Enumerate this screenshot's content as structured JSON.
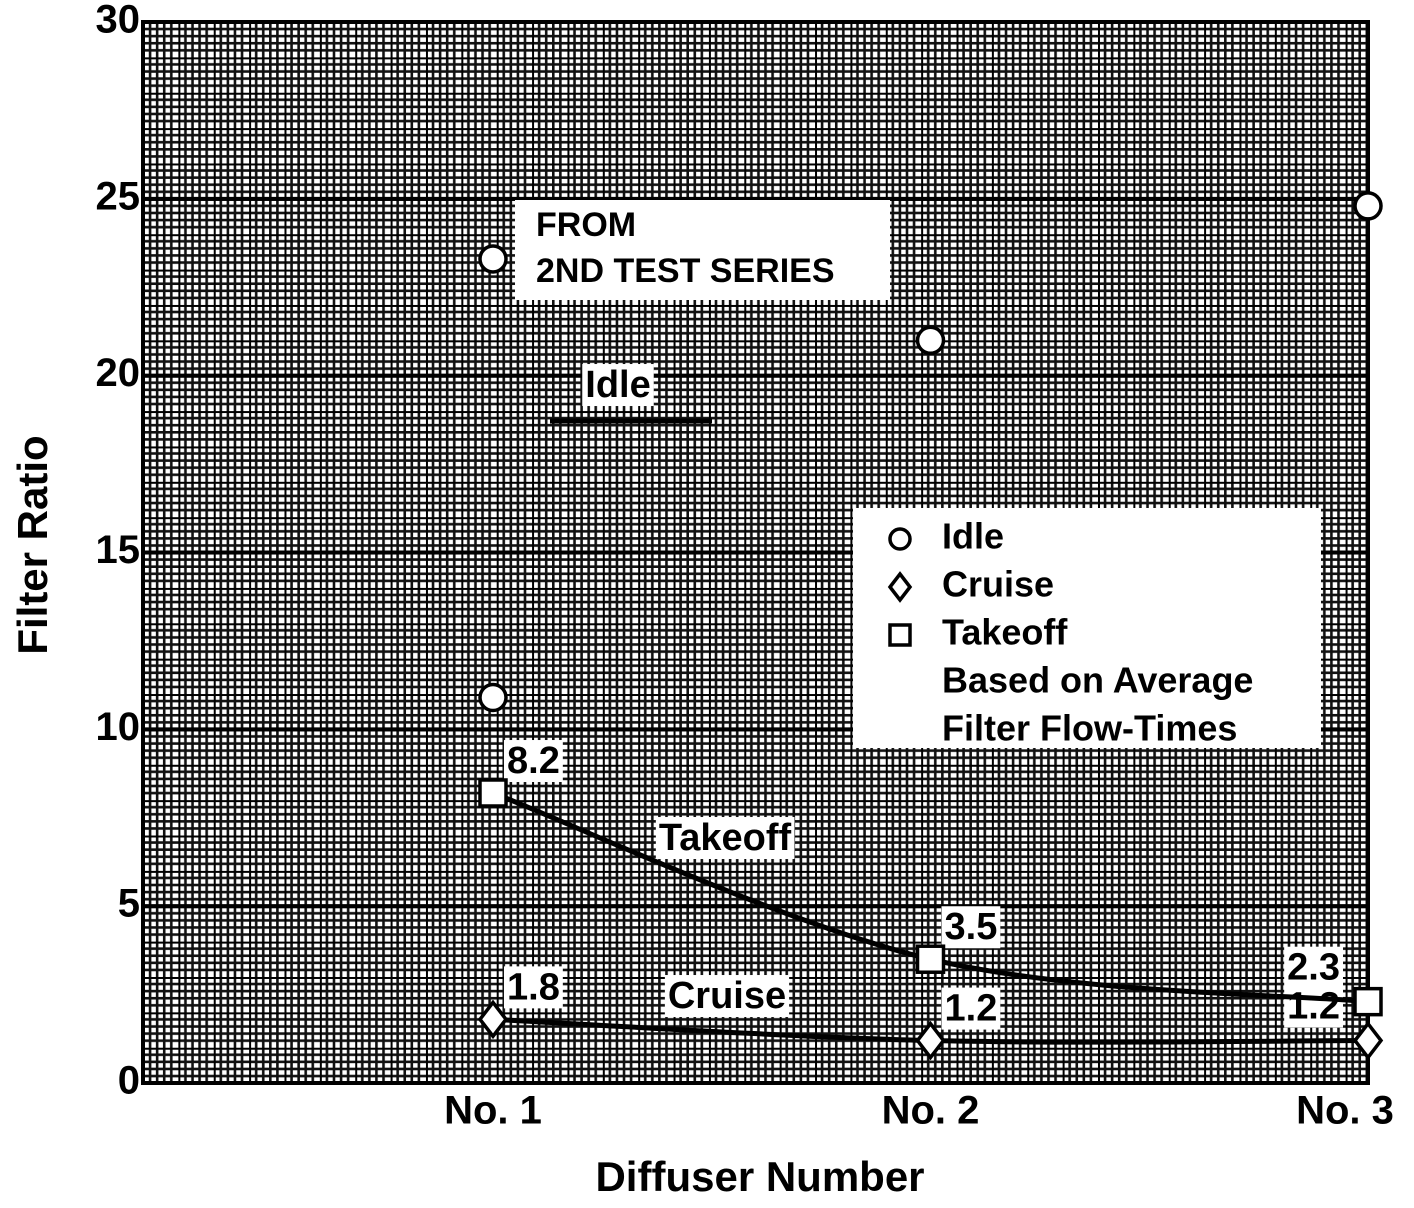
{
  "chart_data": {
    "type": "line",
    "x_label": "Diffuser Number",
    "y_label": "Filter Ratio",
    "categories": [
      "No. 1",
      "No. 2",
      "No. 3"
    ],
    "series": [
      {
        "name": "Idle",
        "marker": "circle",
        "line": false,
        "values": [
          10.9,
          21.0,
          24.8
        ]
      },
      {
        "name": "Cruise",
        "marker": "diamond",
        "line": true,
        "curve_label": "Cruise",
        "values": [
          1.8,
          1.2,
          1.2
        ]
      },
      {
        "name": "Takeoff",
        "marker": "square",
        "line": true,
        "curve_label": "Takeoff",
        "values": [
          8.2,
          3.5,
          2.3
        ]
      }
    ],
    "annotations": [
      {
        "text": [
          "FROM",
          "2ND TEST SERIES"
        ],
        "series": "Idle",
        "category": "No. 1",
        "value": 23.3
      },
      {
        "text": "Idle"
      }
    ],
    "legend_note": [
      "Based on Average",
      "Filter Flow-Times"
    ],
    "ylim": [
      0,
      30
    ],
    "yticks": [
      0,
      5,
      10,
      15,
      20,
      25,
      30
    ],
    "grid": true,
    "color": "#000000"
  }
}
